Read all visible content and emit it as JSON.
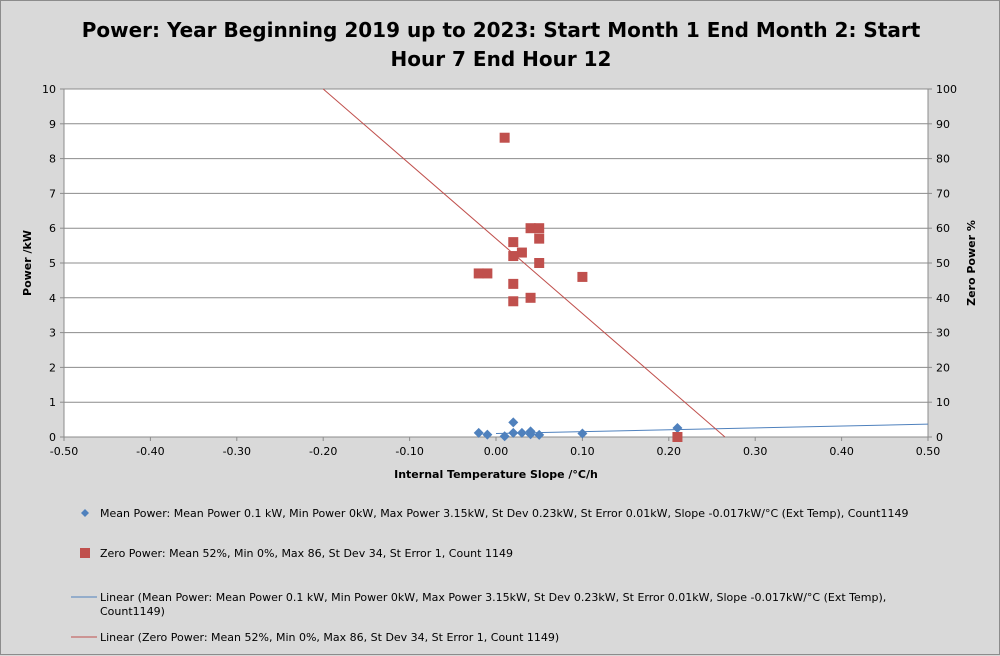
{
  "chart_data": {
    "type": "scatter",
    "title_line1": "Power: Year Beginning 2019 up to 2023: Start Month 1 End Month 2: Start",
    "title_line2": "Hour 7 End Hour 12",
    "xlabel": "Internal Temperature Slope /°C/h",
    "ylabel": "Power /kW",
    "y2label": "Zero Power %",
    "xlim": [
      -0.5,
      0.5
    ],
    "ylim": [
      0,
      10
    ],
    "y2lim": [
      0,
      100
    ],
    "x_ticks": [
      "-0.50",
      "-0.40",
      "-0.30",
      "-0.20",
      "-0.10",
      "0.00",
      "0.10",
      "0.20",
      "0.30",
      "0.40",
      "0.50"
    ],
    "y_ticks": [
      "0",
      "1",
      "2",
      "3",
      "4",
      "5",
      "6",
      "7",
      "8",
      "9",
      "10"
    ],
    "y2_ticks": [
      "0",
      "10",
      "20",
      "30",
      "40",
      "50",
      "60",
      "70",
      "80",
      "90",
      "100"
    ],
    "gridlines": "horizontal",
    "legend_position": "bottom",
    "series": [
      {
        "name": "Mean Power: Mean Power 0.1 kW,  Min Power 0kW,  Max Power 3.15kW,  St Dev 0.23kW,  St Error 0.01kW, Slope -0.017kW/°C (Ext Temp), Count1149",
        "axis": "left",
        "marker": "diamond",
        "color": "#4f81bd",
        "points": [
          [
            -0.02,
            0.12
          ],
          [
            -0.01,
            0.07
          ],
          [
            0.01,
            0.02
          ],
          [
            0.02,
            0.42
          ],
          [
            0.02,
            0.12
          ],
          [
            0.03,
            0.12
          ],
          [
            0.04,
            0.16
          ],
          [
            0.04,
            0.08
          ],
          [
            0.05,
            0.06
          ],
          [
            0.1,
            0.1
          ],
          [
            0.21,
            0.26
          ]
        ]
      },
      {
        "name": "Zero Power:  Mean 52%, Min 0%, Max 86, St Dev 34, St Error 1, Count 1149",
        "axis": "right",
        "marker": "square",
        "color": "#c0504d",
        "points": [
          [
            -0.02,
            47
          ],
          [
            -0.01,
            47
          ],
          [
            0.01,
            86
          ],
          [
            0.02,
            56
          ],
          [
            0.02,
            52
          ],
          [
            0.02,
            44
          ],
          [
            0.02,
            39
          ],
          [
            0.03,
            53
          ],
          [
            0.04,
            60
          ],
          [
            0.04,
            40
          ],
          [
            0.05,
            60
          ],
          [
            0.05,
            57
          ],
          [
            0.05,
            50
          ],
          [
            0.1,
            46
          ],
          [
            0.21,
            0
          ]
        ]
      }
    ],
    "trendlines": [
      {
        "name": "Linear (Mean Power: Mean Power 0.1 kW,  Min Power 0kW,  Max Power 3.15kW,  St Dev 0.23kW,  St Error 0.01kW, Slope -0.017kW/°C (Ext Temp), Count1149)",
        "axis": "left",
        "color": "#4f81bd",
        "x_range": [
          0.0,
          0.5
        ],
        "y_range": [
          0.1,
          0.37
        ]
      },
      {
        "name": "Linear (Zero Power:  Mean 52%, Min 0%, Max 86, St Dev 34, St Error 1, Count 1149)",
        "axis": "right",
        "color": "#c0504d",
        "x_range": [
          -0.2,
          0.265
        ],
        "y_range": [
          100,
          0
        ]
      }
    ]
  },
  "legend": [
    {
      "kind": "diamond",
      "color": "#4f81bd",
      "lines": [
        "Mean Power: Mean Power 0.1 kW,  Min Power 0kW,  Max Power 3.15kW,  St Dev 0.23kW,  St Error 0.01kW, Slope -0.017kW/°C (Ext Temp), Count1149"
      ]
    },
    {
      "kind": "square",
      "color": "#c0504d",
      "lines": [
        "Zero Power:  Mean 52%, Min 0%, Max 86, St Dev 34, St Error 1, Count 1149"
      ]
    },
    {
      "kind": "line",
      "color": "#4f81bd",
      "lines": [
        "Linear (Mean Power: Mean Power 0.1 kW,  Min Power 0kW,  Max Power 3.15kW,  St Dev 0.23kW,  St Error 0.01kW, Slope -0.017kW/°C (Ext Temp),",
        "Count1149)"
      ]
    },
    {
      "kind": "line",
      "color": "#c0504d",
      "lines": [
        "Linear (Zero Power:  Mean 52%, Min 0%, Max 86, St Dev 34, St Error 1, Count 1149)"
      ]
    }
  ]
}
